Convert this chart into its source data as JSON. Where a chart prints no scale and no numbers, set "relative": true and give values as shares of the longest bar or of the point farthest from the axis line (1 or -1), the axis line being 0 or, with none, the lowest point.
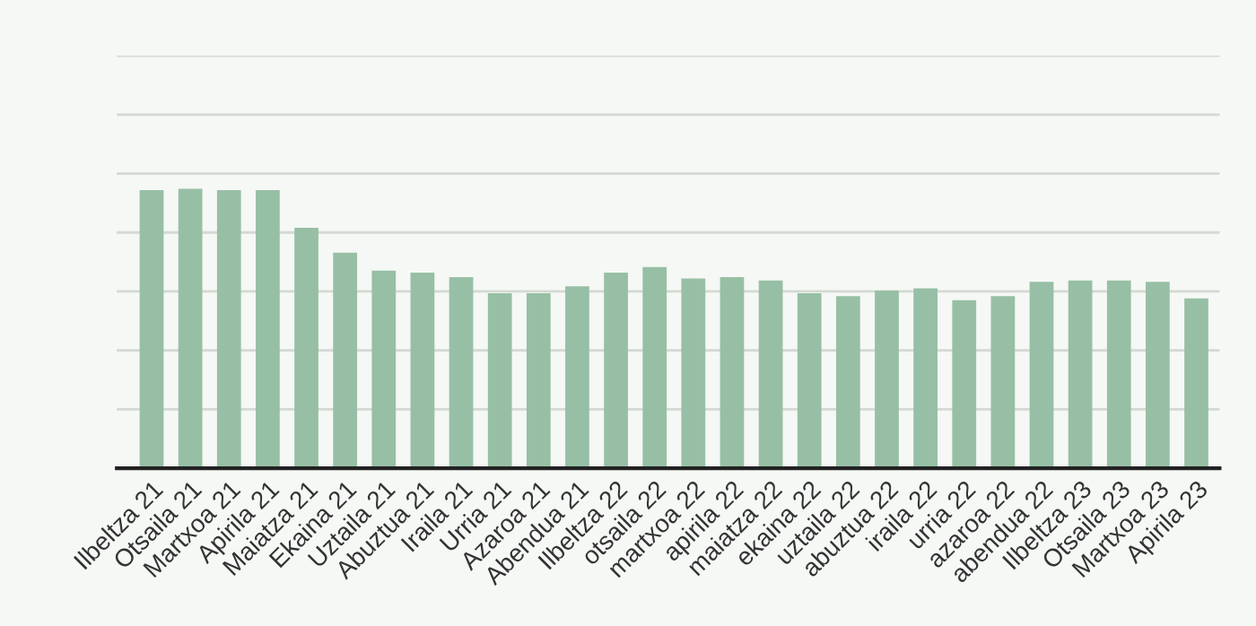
{
  "chart_data": {
    "type": "bar",
    "relative": true,
    "grid": "y",
    "color": "#97bfa5",
    "categories": [
      "Ilbeltza 21",
      "Otsaila 21",
      "Martxoa 21",
      "Apirila 21",
      "Maiatza 21",
      "Ekaina 21",
      "Uztaila 21",
      "Abuztua 21",
      "Iraila 21",
      "Urria 21",
      "Azaroa 21",
      "Abendua 21",
      "Ilbeltza 22",
      "otsaila 22",
      "martxoa 22",
      "apirila 22",
      "maiatza 22",
      "ekaina 22",
      "uztaila 22",
      "abuztua 22",
      "iraila 22",
      "urria 22",
      "azaroa 22",
      "abendua 22",
      "Ilbeltza 23",
      "Otsaila 23",
      "Martxoa 23",
      "Apirila 23"
    ],
    "values": [
      0.995,
      1,
      0.995,
      0.995,
      0.86,
      0.771,
      0.707,
      0.7,
      0.684,
      0.626,
      0.626,
      0.651,
      0.7,
      0.72,
      0.679,
      0.684,
      0.672,
      0.626,
      0.616,
      0.636,
      0.644,
      0.601,
      0.616,
      0.667,
      0.672,
      0.672,
      0.667,
      0.608
    ]
  }
}
